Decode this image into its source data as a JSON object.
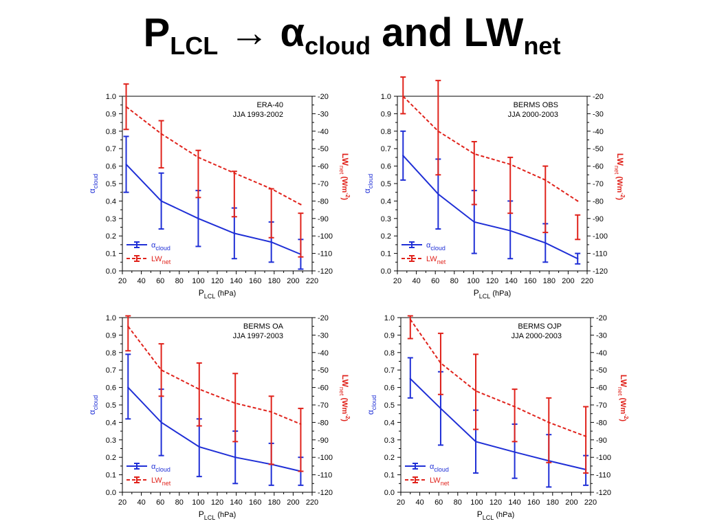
{
  "title": {
    "p": "P",
    "p_sub": "LCL",
    "arrow": " → ",
    "alpha": "α",
    "alpha_sub": "cloud",
    "mid": " and LW",
    "lw_sub": "net"
  },
  "colors": {
    "cloud": "#1f2fd6",
    "lw": "#e0221b",
    "axis": "#000000"
  },
  "chart_data": [
    {
      "type": "line",
      "annotation": [
        "ERA-40",
        "JJA 1993-2002"
      ],
      "xlabel": "P",
      "xlabel_sub": "LCL",
      "xlabel_unit": "(hPa)",
      "ylabel": "α",
      "ylabel_sub": "cloud",
      "y2label": "LW",
      "y2label_sub": "net",
      "y2label_unit": "(Wm",
      "y2label_sup": "-2",
      "y2label_close": ")",
      "xlim": [
        20,
        220
      ],
      "ylim": [
        0,
        1.0
      ],
      "y2lim": [
        -120,
        -20
      ],
      "xticks": [
        "20",
        "40",
        "60",
        "80",
        "100",
        "120",
        "140",
        "160",
        "180",
        "200",
        "220"
      ],
      "yticks": [
        "0.0",
        "0.1",
        "0.2",
        "0.3",
        "0.4",
        "0.5",
        "0.6",
        "0.7",
        "0.8",
        "0.9",
        "1.0"
      ],
      "y2ticks": [
        "-20",
        "-30",
        "-40",
        "-50",
        "-60",
        "-70",
        "-80",
        "-90",
        "-100",
        "-110",
        "-120"
      ],
      "legend": [
        {
          "name": "α",
          "sub": "cloud",
          "series": "cloud"
        },
        {
          "name": "LW",
          "sub": "net",
          "series": "lw"
        }
      ],
      "series": [
        {
          "key": "cloud",
          "axis": "left",
          "x": [
            24,
            61,
            100,
            138,
            177,
            208
          ],
          "values": [
            0.61,
            0.4,
            0.3,
            0.215,
            0.165,
            0.095
          ],
          "err_low": [
            0.45,
            0.24,
            0.14,
            0.07,
            0.05,
            0.01
          ],
          "err_high": [
            0.77,
            0.56,
            0.46,
            0.36,
            0.28,
            0.18
          ]
        },
        {
          "key": "lw",
          "axis": "right",
          "x": [
            24,
            61,
            100,
            138,
            177,
            208
          ],
          "values": [
            -26,
            -41.5,
            -55,
            -64,
            -73,
            -82
          ],
          "err_low": [
            -39,
            -61,
            -78,
            -89,
            -101,
            -112
          ],
          "err_high": [
            -13,
            -34,
            -51,
            -63,
            -73,
            -87
          ]
        }
      ]
    },
    {
      "type": "line",
      "annotation": [
        "BERMS OBS",
        "JJA 2000-2003"
      ],
      "xlabel": "P",
      "xlabel_sub": "LCL",
      "xlabel_unit": "(hPa)",
      "ylabel": "α",
      "ylabel_sub": "cloud",
      "y2label": "LW",
      "y2label_sub": "net",
      "y2label_unit": "(Wm",
      "y2label_sup": "-2",
      "y2label_close": ")",
      "xlim": [
        20,
        220
      ],
      "ylim": [
        0,
        1.0
      ],
      "y2lim": [
        -120,
        -20
      ],
      "xticks": [
        "20",
        "40",
        "60",
        "80",
        "100",
        "120",
        "140",
        "160",
        "180",
        "200",
        "220"
      ],
      "yticks": [
        "0.0",
        "0.1",
        "0.2",
        "0.3",
        "0.4",
        "0.5",
        "0.6",
        "0.7",
        "0.8",
        "0.9",
        "1.0"
      ],
      "y2ticks": [
        "-20",
        "-30",
        "-40",
        "-50",
        "-60",
        "-70",
        "-80",
        "-90",
        "-100",
        "-110",
        "-120"
      ],
      "legend": [
        {
          "name": "α",
          "sub": "cloud",
          "series": "cloud"
        },
        {
          "name": "LW",
          "sub": "net",
          "series": "lw"
        }
      ],
      "series": [
        {
          "key": "cloud",
          "axis": "left",
          "x": [
            26,
            63,
            101,
            139,
            176,
            210
          ],
          "values": [
            0.66,
            0.44,
            0.28,
            0.23,
            0.16,
            0.07
          ],
          "err_low": [
            0.52,
            0.24,
            0.1,
            0.07,
            0.05,
            0.04
          ],
          "err_high": [
            0.8,
            0.64,
            0.46,
            0.4,
            0.27,
            0.1
          ]
        },
        {
          "key": "lw",
          "axis": "right",
          "x": [
            26,
            63,
            101,
            139,
            176,
            210
          ],
          "values": [
            -20,
            -40,
            -53,
            -59,
            -68,
            -80
          ],
          "err_low": [
            -30,
            -65,
            -82,
            -87,
            -98,
            -102
          ],
          "err_high": [
            -9,
            -11,
            -46,
            -55,
            -60,
            -88
          ]
        }
      ]
    },
    {
      "type": "line",
      "annotation": [
        "BERMS OA",
        "JJA 1997-2003"
      ],
      "xlabel": "P",
      "xlabel_sub": "LCL",
      "xlabel_unit": "(hPa)",
      "ylabel": "α",
      "ylabel_sub": "cloud",
      "y2label": "LW",
      "y2label_sub": "net",
      "y2label_unit": "(Wm",
      "y2label_sup": "-2",
      "y2label_close": ")",
      "xlim": [
        20,
        220
      ],
      "ylim": [
        0,
        1.0
      ],
      "y2lim": [
        -120,
        -20
      ],
      "xticks": [
        "20",
        "40",
        "60",
        "80",
        "100",
        "120",
        "140",
        "160",
        "180",
        "200",
        "220"
      ],
      "yticks": [
        "0.0",
        "0.1",
        "0.2",
        "0.3",
        "0.4",
        "0.5",
        "0.6",
        "0.7",
        "0.8",
        "0.9",
        "1.0"
      ],
      "y2ticks": [
        "-20",
        "-30",
        "-40",
        "-50",
        "-60",
        "-70",
        "-80",
        "-90",
        "-100",
        "-110",
        "-120"
      ],
      "legend": [
        {
          "name": "α",
          "sub": "cloud",
          "series": "cloud"
        },
        {
          "name": "LW",
          "sub": "net",
          "series": "lw"
        }
      ],
      "series": [
        {
          "key": "cloud",
          "axis": "left",
          "x": [
            26,
            61,
            101,
            139,
            177,
            208
          ],
          "values": [
            0.6,
            0.4,
            0.26,
            0.2,
            0.16,
            0.12
          ],
          "err_low": [
            0.42,
            0.21,
            0.09,
            0.05,
            0.04,
            0.04
          ],
          "err_high": [
            0.79,
            0.59,
            0.42,
            0.35,
            0.28,
            0.2
          ]
        },
        {
          "key": "lw",
          "axis": "right",
          "x": [
            26,
            61,
            101,
            139,
            177,
            208
          ],
          "values": [
            -25,
            -50,
            -61,
            -69,
            -74,
            -81
          ],
          "err_low": [
            -39,
            -65,
            -82,
            -91,
            -104,
            -108
          ],
          "err_high": [
            -19,
            -35,
            -46,
            -52,
            -65,
            -72
          ]
        }
      ]
    },
    {
      "type": "line",
      "annotation": [
        "BERMS OJP",
        "JJA 2000-2003"
      ],
      "xlabel": "P",
      "xlabel_sub": "LCL",
      "xlabel_unit": "(hPa)",
      "ylabel": "α",
      "ylabel_sub": "cloud",
      "y2label": "LW",
      "y2label_sub": "net",
      "y2label_unit": "(Wm",
      "y2label_sup": "-2",
      "y2label_close": ")",
      "xlim": [
        20,
        220
      ],
      "ylim": [
        0,
        1.0
      ],
      "y2lim": [
        -120,
        -20
      ],
      "xticks": [
        "20",
        "40",
        "60",
        "80",
        "100",
        "120",
        "140",
        "160",
        "180",
        "200",
        "220"
      ],
      "yticks": [
        "0.0",
        "0.1",
        "0.2",
        "0.3",
        "0.4",
        "0.5",
        "0.6",
        "0.7",
        "0.8",
        "0.9",
        "1.0"
      ],
      "y2ticks": [
        "-20",
        "-30",
        "-40",
        "-50",
        "-60",
        "-70",
        "-80",
        "-90",
        "-100",
        "-110",
        "-120"
      ],
      "legend": [
        {
          "name": "α",
          "sub": "cloud",
          "series": "cloud"
        },
        {
          "name": "LW",
          "sub": "net",
          "series": "lw"
        }
      ],
      "series": [
        {
          "key": "cloud",
          "axis": "left",
          "x": [
            30,
            62,
            99,
            140,
            176,
            215
          ],
          "values": [
            0.65,
            0.48,
            0.29,
            0.23,
            0.18,
            0.13
          ],
          "err_low": [
            0.54,
            0.27,
            0.11,
            0.08,
            0.03,
            0.04
          ],
          "err_high": [
            0.77,
            0.69,
            0.47,
            0.39,
            0.33,
            0.21
          ]
        },
        {
          "key": "lw",
          "axis": "right",
          "x": [
            30,
            62,
            99,
            140,
            176,
            215
          ],
          "values": [
            -21,
            -46,
            -62,
            -71,
            -80,
            -88
          ],
          "err_low": [
            -32,
            -64,
            -84,
            -91,
            -103,
            -109
          ],
          "err_high": [
            -19,
            -29,
            -41,
            -61,
            -66,
            -71
          ]
        }
      ]
    }
  ]
}
